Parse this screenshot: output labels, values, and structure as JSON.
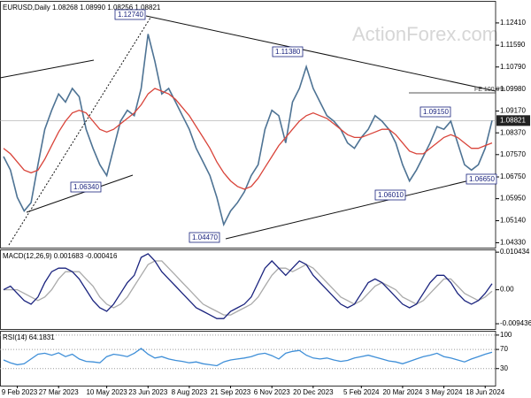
{
  "chart_data": [
    {
      "type": "line",
      "title": "EURUSD,Daily  1.08268 1.08990 1.08256 1.08821",
      "grid": false,
      "ylim": [
        1.0415,
        1.1322
      ],
      "yticks": [
        {
          "value": 1.1241,
          "label": "1.12410"
        },
        {
          "value": 1.1159,
          "label": "1.11590"
        },
        {
          "value": 1.1079,
          "label": "1.10790"
        },
        {
          "value": 1.0998,
          "label": "1.09980"
        },
        {
          "value": 1.0917,
          "label": "1.09170"
        },
        {
          "value": 1.0837,
          "label": "1.08370"
        },
        {
          "value": 1.0757,
          "label": "1.07570"
        },
        {
          "value": 1.0675,
          "label": "1.06750"
        },
        {
          "value": 1.0595,
          "label": "1.05950"
        },
        {
          "value": 1.0514,
          "label": "1.05140"
        },
        {
          "value": 1.0433,
          "label": "1.04330"
        }
      ],
      "last_value": 1.08821,
      "annotations": [
        "1.12740",
        "1.11380",
        "1.06340",
        "1.04470",
        "1.06010",
        "1.09150",
        "1.06650"
      ],
      "fe_label": "FE 100.0%",
      "watermark": "ActionForex.com",
      "series": [
        {
          "color": "#4e7394",
          "values": [
            1.075,
            1.07,
            1.06,
            1.055,
            1.058,
            1.072,
            1.085,
            1.092,
            1.098,
            1.095,
            1.1,
            1.097,
            1.085,
            1.078,
            1.072,
            1.068,
            1.078,
            1.088,
            1.092,
            1.09,
            1.1,
            1.12,
            1.11,
            1.098,
            1.1,
            1.095,
            1.09,
            1.085,
            1.078,
            1.073,
            1.068,
            1.06,
            1.05,
            1.055,
            1.058,
            1.062,
            1.068,
            1.072,
            1.085,
            1.092,
            1.09,
            1.08,
            1.095,
            1.1,
            1.108,
            1.1,
            1.095,
            1.09,
            1.088,
            1.085,
            1.08,
            1.078,
            1.082,
            1.085,
            1.09,
            1.088,
            1.085,
            1.08,
            1.072,
            1.066,
            1.07,
            1.075,
            1.08,
            1.086,
            1.085,
            1.088,
            1.08,
            1.072,
            1.07,
            1.072,
            1.078,
            1.0882
          ]
        },
        {
          "color": "#d9443a",
          "values": [
            1.078,
            1.076,
            1.073,
            1.07,
            1.069,
            1.07,
            1.074,
            1.079,
            1.084,
            1.088,
            1.091,
            1.092,
            1.091,
            1.088,
            1.085,
            1.084,
            1.085,
            1.087,
            1.089,
            1.091,
            1.094,
            1.098,
            1.1,
            1.099,
            1.098,
            1.096,
            1.093,
            1.09,
            1.086,
            1.082,
            1.078,
            1.073,
            1.069,
            1.066,
            1.064,
            1.063,
            1.064,
            1.067,
            1.071,
            1.075,
            1.079,
            1.082,
            1.085,
            1.088,
            1.09,
            1.091,
            1.09,
            1.089,
            1.087,
            1.085,
            1.083,
            1.082,
            1.082,
            1.083,
            1.084,
            1.085,
            1.085,
            1.083,
            1.08,
            1.077,
            1.076,
            1.076,
            1.078,
            1.08,
            1.082,
            1.083,
            1.082,
            1.08,
            1.078,
            1.078,
            1.079,
            1.08
          ]
        }
      ]
    },
    {
      "type": "line",
      "title": "MACD(12,26,9) 0.001683 -0.000416",
      "grid": false,
      "ylim": [
        -0.0109,
        0.0112
      ],
      "yticks": [
        0.010434,
        {
          "value": 0,
          "label": "0.00"
        },
        -0.009436
      ],
      "series": [
        {
          "color": "#aaaaaa",
          "values": [
            0.0,
            0.0,
            0.0,
            -0.001,
            -0.002,
            -0.003,
            -0.002,
            0.0,
            0.003,
            0.005,
            0.005,
            0.005,
            0.003,
            0.001,
            -0.002,
            -0.004,
            -0.005,
            -0.004,
            -0.002,
            0.001,
            0.004,
            0.007,
            0.008,
            0.008,
            0.006,
            0.004,
            0.002,
            0.0,
            -0.002,
            -0.004,
            -0.005,
            -0.006,
            -0.007,
            -0.007,
            -0.006,
            -0.005,
            -0.004,
            -0.002,
            0.001,
            0.004,
            0.006,
            0.006,
            0.005,
            0.006,
            0.007,
            0.006,
            0.004,
            0.002,
            0.0,
            -0.002,
            -0.003,
            -0.004,
            -0.003,
            -0.001,
            0.001,
            0.002,
            0.001,
            0.0,
            -0.002,
            -0.003,
            -0.004,
            -0.003,
            -0.001,
            0.001,
            0.003,
            0.003,
            0.001,
            -0.001,
            -0.002,
            -0.003,
            -0.002,
            -0.0004
          ]
        },
        {
          "color": "#1a237e",
          "values": [
            0.0,
            0.001,
            -0.001,
            -0.003,
            -0.004,
            -0.002,
            0.002,
            0.005,
            0.006,
            0.006,
            0.005,
            0.003,
            0.0,
            -0.003,
            -0.005,
            -0.006,
            -0.004,
            -0.001,
            0.002,
            0.004,
            0.009,
            0.01,
            0.008,
            0.005,
            0.003,
            0.001,
            -0.001,
            -0.003,
            -0.005,
            -0.006,
            -0.007,
            -0.008,
            -0.008,
            -0.006,
            -0.005,
            -0.004,
            -0.002,
            0.002,
            0.006,
            0.008,
            0.006,
            0.004,
            0.006,
            0.008,
            0.007,
            0.004,
            0.002,
            0.0,
            -0.002,
            -0.004,
            -0.005,
            -0.004,
            -0.001,
            0.002,
            0.003,
            0.002,
            0.0,
            -0.002,
            -0.004,
            -0.005,
            -0.004,
            -0.001,
            0.002,
            0.004,
            0.004,
            0.002,
            -0.001,
            -0.003,
            -0.004,
            -0.003,
            -0.001,
            0.0017
          ]
        }
      ]
    },
    {
      "type": "line",
      "title": "RSI(14) 64.1831",
      "grid": true,
      "ylim": [
        -5.6,
        109
      ],
      "yticks": [
        100,
        70,
        30
      ],
      "categories": [
        null,
        null,
        "9 Feb 2023",
        null,
        null,
        null,
        null,
        null,
        "27 Mar 2023",
        null,
        null,
        null,
        null,
        null,
        null,
        "10 May 2023",
        null,
        null,
        null,
        null,
        null,
        "23 Jun 2023",
        null,
        null,
        null,
        null,
        null,
        "8 Aug 2023",
        null,
        null,
        null,
        null,
        null,
        "21 Sep 2023",
        null,
        null,
        null,
        null,
        null,
        "6 Nov 2023",
        null,
        null,
        null,
        null,
        null,
        "20 Dec 2023",
        null,
        null,
        null,
        null,
        null,
        null,
        "5 Feb 2024",
        null,
        null,
        null,
        null,
        null,
        "20 Mar 2024",
        null,
        null,
        null,
        null,
        null,
        "3 May 2024",
        null,
        null,
        null,
        null,
        null,
        "18 Jun 2024",
        null
      ],
      "series": [
        {
          "color": "#3f8fd8",
          "values": [
            48,
            42,
            38,
            40,
            50,
            60,
            62,
            58,
            63,
            55,
            60,
            50,
            45,
            44,
            42,
            55,
            60,
            58,
            55,
            62,
            72,
            60,
            52,
            55,
            50,
            47,
            45,
            42,
            44,
            40,
            38,
            36,
            44,
            48,
            50,
            52,
            55,
            60,
            62,
            57,
            50,
            62,
            66,
            68,
            58,
            52,
            50,
            52,
            48,
            45,
            47,
            52,
            55,
            58,
            54,
            50,
            46,
            44,
            40,
            45,
            50,
            55,
            58,
            62,
            55,
            52,
            48,
            44,
            50,
            55,
            60,
            64.18
          ]
        }
      ]
    }
  ]
}
